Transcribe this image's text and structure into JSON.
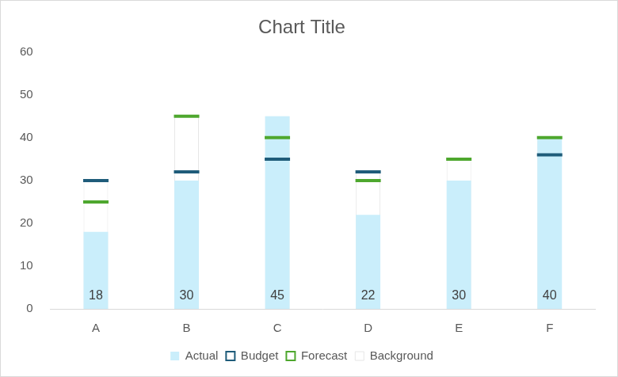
{
  "chart_data": {
    "type": "bar",
    "title": "Chart Title",
    "categories": [
      "A",
      "B",
      "C",
      "D",
      "E",
      "F"
    ],
    "series": [
      {
        "name": "Actual",
        "color": "#caeefb",
        "values": [
          18,
          30,
          45,
          22,
          30,
          40
        ],
        "data_labels": true
      },
      {
        "name": "Budget",
        "color": "#1f5c7a",
        "type": "marker",
        "marker": "dash",
        "values": [
          30,
          32,
          35,
          32,
          null,
          36
        ]
      },
      {
        "name": "Forecast",
        "color": "#4ea72e",
        "type": "marker",
        "marker": "dash",
        "values": [
          25,
          45,
          40,
          30,
          35,
          40
        ]
      },
      {
        "name": "Background",
        "color": "#ffffff",
        "values": [
          30,
          45,
          45,
          32,
          35,
          40
        ]
      }
    ],
    "ylim": [
      0,
      60
    ],
    "yticks": [
      0,
      10,
      20,
      30,
      40,
      50,
      60
    ],
    "grid": false,
    "legend": "bottom"
  }
}
